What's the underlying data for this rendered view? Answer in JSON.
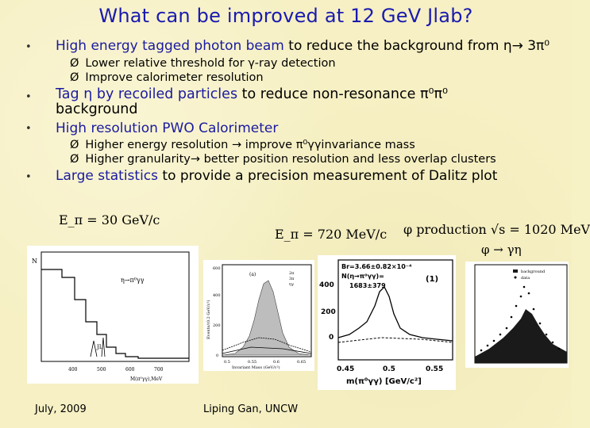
{
  "title": "What can be improved at 12 GeV Jlab?",
  "bullets": {
    "b1_blue": "High energy tagged photon beam",
    "b1_rest": " to reduce the background from η→ 3π⁰",
    "b1_sub1": "Lower relative threshold for γ-ray detection",
    "b1_sub2": "Improve calorimeter resolution",
    "b2_blue": "Tag η by recoiled particles",
    "b2_rest": " to reduce non-resonance π⁰π⁰ background",
    "b3": "High resolution PWO Calorimeter",
    "b3_sub1": "Higher energy resolution → improve π⁰γγinvariance mass",
    "b3_sub2": "Higher granularity→ better position resolution and less overlap clusters",
    "b4_blue": "Large statistics",
    "b4_rest": " to provide a precision measurement of Dalitz plot",
    "sub_marker": "Ø"
  },
  "formulas": {
    "e_pi_30": "E_π = 30 GeV/c",
    "e_pi_720": "E_π = 720 MeV/c",
    "phi_production": "φ production √s = 1020 MeV",
    "phi_decay": "φ → γη"
  },
  "plots": {
    "p1_legend": "η→π⁰γγ",
    "p1_ylabel": "N",
    "p1_xlabel": "M(π⁰γγ),MeV",
    "p1_ticks": [
      "400",
      "500",
      "600",
      "700"
    ],
    "p1_annot": "JL",
    "p2_tag": "(a)",
    "p2_legend": [
      "2π",
      "3π",
      "ηγ"
    ],
    "p2_ylabel": "Events/(0.2 GeV/c²)",
    "p2_yticks": [
      "0",
      "200",
      "400",
      "600"
    ],
    "p2_xticks": [
      "0.5",
      "0.55",
      "0.6",
      "0.65"
    ],
    "p2_xlabel": "Invariant Mass (GeV/c²)",
    "p3_box1": "Br=3.66±0.82×10⁻⁴",
    "p3_box2": "N(η→π⁰γγ)=",
    "p3_box3": "1683±379",
    "p3_tag": "(1)",
    "p3_yticks": [
      "400",
      "200",
      "0"
    ],
    "p3_xticks": [
      "0.45",
      "0.5",
      "0.55"
    ],
    "p3_xlabel": "m(π⁰γγ) [GeV/c²]",
    "p4_legend": [
      "background",
      "data"
    ]
  },
  "footer": {
    "date": "July, 2009",
    "author": "Liping Gan, UNCW"
  }
}
